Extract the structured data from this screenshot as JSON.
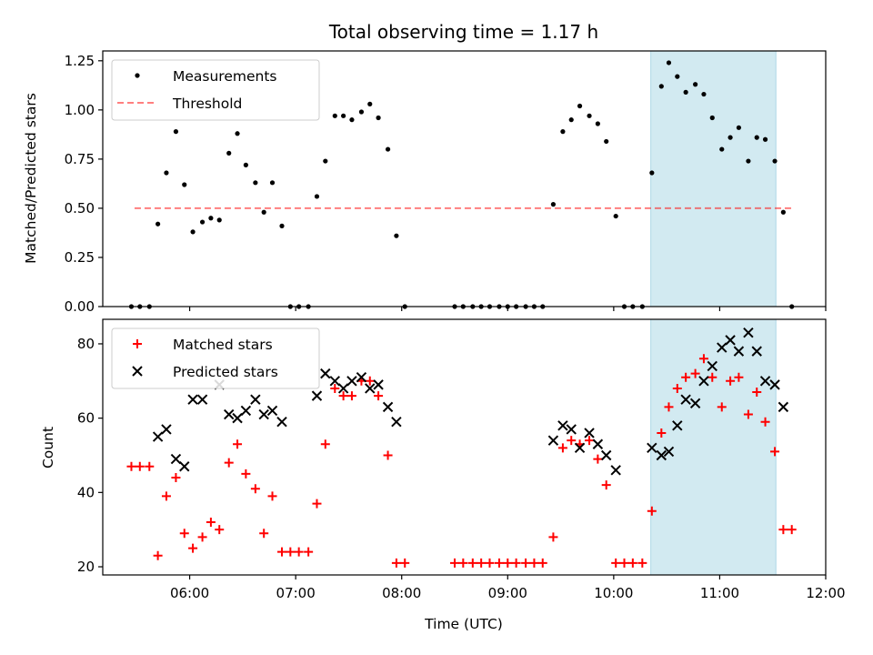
{
  "chart_data": {
    "title": "Total observing time = 1.17 h",
    "xlabel": "Time (UTC)",
    "x_units": "hours UTC",
    "xlim": [
      5.18,
      12.0
    ],
    "xticks": [
      6,
      7,
      8,
      9,
      10,
      11,
      12
    ],
    "xtick_labels": [
      "06:00",
      "07:00",
      "08:00",
      "09:00",
      "10:00",
      "11:00",
      "12:00"
    ],
    "highlight_span": {
      "x_start": 10.35,
      "x_end": 11.53,
      "color": "#add8e6"
    },
    "panels": [
      {
        "type": "scatter",
        "ylabel": "Matched/Predicted stars",
        "ylim": [
          0.0,
          1.3
        ],
        "yticks": [
          0.0,
          0.25,
          0.5,
          0.75,
          1.0,
          1.25
        ],
        "ytick_labels": [
          "0.00",
          "0.25",
          "0.50",
          "0.75",
          "1.00",
          "1.25"
        ],
        "legend": {
          "position": "upper left",
          "entries": [
            "Measurements",
            "Threshold"
          ]
        },
        "threshold": {
          "name": "Threshold",
          "y": 0.5,
          "x_start": 5.48,
          "x_end": 11.7,
          "color": "#ff0000",
          "alpha": 0.5,
          "style": "dashed"
        },
        "series": [
          {
            "name": "Measurements",
            "marker": "dot",
            "color": "#000000",
            "points": [
              [
                5.45,
                0.0
              ],
              [
                5.53,
                0.0
              ],
              [
                5.62,
                0.0
              ],
              [
                5.7,
                0.42
              ],
              [
                5.78,
                0.68
              ],
              [
                5.87,
                0.89
              ],
              [
                5.95,
                0.62
              ],
              [
                6.03,
                0.38
              ],
              [
                6.12,
                0.43
              ],
              [
                6.2,
                0.45
              ],
              [
                6.28,
                0.44
              ],
              [
                6.37,
                0.78
              ],
              [
                6.45,
                0.88
              ],
              [
                6.53,
                0.72
              ],
              [
                6.62,
                0.63
              ],
              [
                6.7,
                0.48
              ],
              [
                6.78,
                0.63
              ],
              [
                6.87,
                0.41
              ],
              [
                6.95,
                0.0
              ],
              [
                7.03,
                0.0
              ],
              [
                7.12,
                0.0
              ],
              [
                7.2,
                0.56
              ],
              [
                7.28,
                0.74
              ],
              [
                7.37,
                0.97
              ],
              [
                7.45,
                0.97
              ],
              [
                7.53,
                0.95
              ],
              [
                7.62,
                0.99
              ],
              [
                7.7,
                1.03
              ],
              [
                7.78,
                0.96
              ],
              [
                7.87,
                0.8
              ],
              [
                7.95,
                0.36
              ],
              [
                8.03,
                0.0
              ],
              [
                8.5,
                0.0
              ],
              [
                8.58,
                0.0
              ],
              [
                8.67,
                0.0
              ],
              [
                8.75,
                0.0
              ],
              [
                8.83,
                0.0
              ],
              [
                8.92,
                0.0
              ],
              [
                9.0,
                0.0
              ],
              [
                9.08,
                0.0
              ],
              [
                9.17,
                0.0
              ],
              [
                9.25,
                0.0
              ],
              [
                9.33,
                0.0
              ],
              [
                9.43,
                0.52
              ],
              [
                9.52,
                0.89
              ],
              [
                9.6,
                0.95
              ],
              [
                9.68,
                1.02
              ],
              [
                9.77,
                0.97
              ],
              [
                9.85,
                0.93
              ],
              [
                9.93,
                0.84
              ],
              [
                10.02,
                0.46
              ],
              [
                10.1,
                0.0
              ],
              [
                10.18,
                0.0
              ],
              [
                10.27,
                0.0
              ],
              [
                10.36,
                0.68
              ],
              [
                10.45,
                1.12
              ],
              [
                10.52,
                1.24
              ],
              [
                10.6,
                1.17
              ],
              [
                10.68,
                1.09
              ],
              [
                10.77,
                1.13
              ],
              [
                10.85,
                1.08
              ],
              [
                10.93,
                0.96
              ],
              [
                11.02,
                0.8
              ],
              [
                11.1,
                0.86
              ],
              [
                11.18,
                0.91
              ],
              [
                11.27,
                0.74
              ],
              [
                11.35,
                0.86
              ],
              [
                11.43,
                0.85
              ],
              [
                11.52,
                0.74
              ],
              [
                11.6,
                0.48
              ],
              [
                11.68,
                0.0
              ]
            ]
          }
        ]
      },
      {
        "type": "scatter",
        "ylabel": "Count",
        "ylim": [
          17.8,
          86.6
        ],
        "yticks": [
          20,
          40,
          60,
          80
        ],
        "ytick_labels": [
          "20",
          "40",
          "60",
          "80"
        ],
        "legend": {
          "position": "upper left",
          "entries": [
            "Matched stars",
            "Predicted stars"
          ]
        },
        "series": [
          {
            "name": "Matched stars",
            "marker": "plus",
            "color": "#ff0000",
            "points": [
              [
                5.45,
                47
              ],
              [
                5.53,
                47
              ],
              [
                5.62,
                47
              ],
              [
                5.7,
                23
              ],
              [
                5.78,
                39
              ],
              [
                5.87,
                44
              ],
              [
                5.95,
                29
              ],
              [
                6.03,
                25
              ],
              [
                6.12,
                28
              ],
              [
                6.2,
                32
              ],
              [
                6.28,
                30
              ],
              [
                6.37,
                48
              ],
              [
                6.45,
                53
              ],
              [
                6.53,
                45
              ],
              [
                6.62,
                41
              ],
              [
                6.7,
                29
              ],
              [
                6.78,
                39
              ],
              [
                6.87,
                24
              ],
              [
                6.95,
                24
              ],
              [
                7.03,
                24
              ],
              [
                7.12,
                24
              ],
              [
                7.2,
                37
              ],
              [
                7.28,
                53
              ],
              [
                7.37,
                68
              ],
              [
                7.45,
                66
              ],
              [
                7.53,
                66
              ],
              [
                7.62,
                70
              ],
              [
                7.7,
                70
              ],
              [
                7.78,
                66
              ],
              [
                7.87,
                50
              ],
              [
                7.95,
                21
              ],
              [
                8.03,
                21
              ],
              [
                8.5,
                21
              ],
              [
                8.58,
                21
              ],
              [
                8.67,
                21
              ],
              [
                8.75,
                21
              ],
              [
                8.83,
                21
              ],
              [
                8.92,
                21
              ],
              [
                9.0,
                21
              ],
              [
                9.08,
                21
              ],
              [
                9.17,
                21
              ],
              [
                9.25,
                21
              ],
              [
                9.33,
                21
              ],
              [
                9.43,
                28
              ],
              [
                9.52,
                52
              ],
              [
                9.6,
                54
              ],
              [
                9.68,
                53
              ],
              [
                9.77,
                54
              ],
              [
                9.85,
                49
              ],
              [
                9.93,
                42
              ],
              [
                10.02,
                21
              ],
              [
                10.1,
                21
              ],
              [
                10.18,
                21
              ],
              [
                10.27,
                21
              ],
              [
                10.36,
                35
              ],
              [
                10.45,
                56
              ],
              [
                10.52,
                63
              ],
              [
                10.6,
                68
              ],
              [
                10.68,
                71
              ],
              [
                10.77,
                72
              ],
              [
                10.85,
                76
              ],
              [
                10.93,
                71
              ],
              [
                11.02,
                63
              ],
              [
                11.1,
                70
              ],
              [
                11.18,
                71
              ],
              [
                11.27,
                61
              ],
              [
                11.35,
                67
              ],
              [
                11.43,
                59
              ],
              [
                11.52,
                51
              ],
              [
                11.6,
                30
              ],
              [
                11.68,
                30
              ]
            ]
          },
          {
            "name": "Predicted stars",
            "marker": "x",
            "color": "#000000",
            "points": [
              [
                5.7,
                55
              ],
              [
                5.78,
                57
              ],
              [
                5.87,
                49
              ],
              [
                5.95,
                47
              ],
              [
                6.03,
                65
              ],
              [
                6.12,
                65
              ],
              [
                6.28,
                69
              ],
              [
                6.37,
                61
              ],
              [
                6.45,
                60
              ],
              [
                6.53,
                62
              ],
              [
                6.62,
                65
              ],
              [
                6.7,
                61
              ],
              [
                6.78,
                62
              ],
              [
                6.87,
                59
              ],
              [
                7.2,
                66
              ],
              [
                7.28,
                72
              ],
              [
                7.37,
                70
              ],
              [
                7.45,
                68
              ],
              [
                7.53,
                70
              ],
              [
                7.62,
                71
              ],
              [
                7.7,
                68
              ],
              [
                7.78,
                69
              ],
              [
                7.87,
                63
              ],
              [
                7.95,
                59
              ],
              [
                9.43,
                54
              ],
              [
                9.52,
                58
              ],
              [
                9.6,
                57
              ],
              [
                9.68,
                52
              ],
              [
                9.77,
                56
              ],
              [
                9.85,
                53
              ],
              [
                9.93,
                50
              ],
              [
                10.02,
                46
              ],
              [
                10.36,
                52
              ],
              [
                10.45,
                50
              ],
              [
                10.52,
                51
              ],
              [
                10.6,
                58
              ],
              [
                10.68,
                65
              ],
              [
                10.77,
                64
              ],
              [
                10.85,
                70
              ],
              [
                10.93,
                74
              ],
              [
                11.02,
                79
              ],
              [
                11.1,
                81
              ],
              [
                11.18,
                78
              ],
              [
                11.27,
                83
              ],
              [
                11.35,
                78
              ],
              [
                11.43,
                70
              ],
              [
                11.52,
                69
              ],
              [
                11.6,
                63
              ]
            ]
          }
        ]
      }
    ]
  }
}
